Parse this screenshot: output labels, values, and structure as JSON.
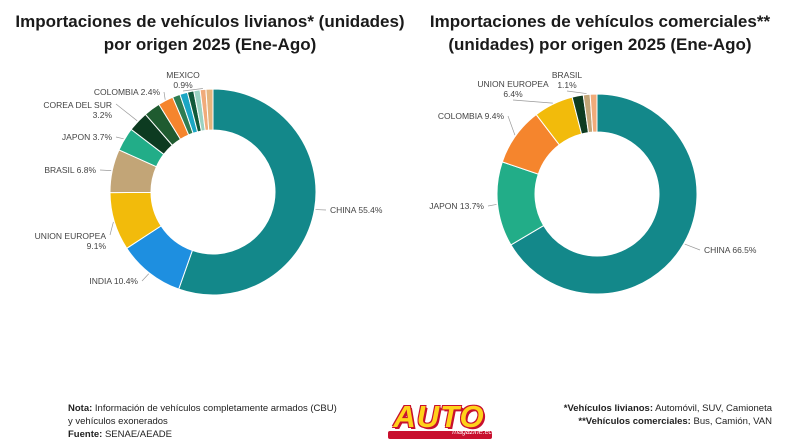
{
  "chart_data": [
    {
      "type": "pie",
      "title": "Importaciones de vehículos livianos* (unidades) por origen 2025 (Ene-Ago)",
      "title_lines": [
        "Importaciones de vehículos livianos* (unidades)",
        "por origen 2025 (Ene-Ago)"
      ],
      "slices": [
        {
          "label": "CHINA",
          "value": 55.4,
          "text": "CHINA 55.4%",
          "color": "#13888a"
        },
        {
          "label": "INDIA",
          "value": 10.4,
          "text": "INDIA 10.4%",
          "color": "#1e8fe0"
        },
        {
          "label": "UNION EUROPEA",
          "value": 9.1,
          "text": [
            "UNION EUROPEA",
            "9.1%"
          ],
          "color": "#f2bb0b"
        },
        {
          "label": "BRASIL",
          "value": 6.8,
          "text": "BRASIL 6.8%",
          "color": "#c2a577"
        },
        {
          "label": "JAPON",
          "value": 3.7,
          "text": "JAPON 3.7%",
          "color": "#22ad88"
        },
        {
          "label": "COREA DEL SUR",
          "value": 3.2,
          "text": [
            "COREA DEL SUR",
            "3.2%"
          ],
          "color": "#0d3b21"
        },
        {
          "label": "other-1",
          "value": 2.6,
          "color": "#1f5b30"
        },
        {
          "label": "COLOMBIA",
          "value": 2.4,
          "text": "COLOMBIA 2.4%",
          "color": "#f5852d"
        },
        {
          "label": "other-2",
          "value": 1.2,
          "color": "#2e7d52"
        },
        {
          "label": "other-3",
          "value": 1.2,
          "color": "#1ba6c4"
        },
        {
          "label": "other-4",
          "value": 1.0,
          "color": "#11593a"
        },
        {
          "label": "other-5",
          "value": 1.0,
          "color": "#9ad2c2"
        },
        {
          "label": "MEXICO",
          "value": 0.9,
          "text": [
            "MEXICO",
            "0.9%"
          ],
          "color": "#f0ab7a"
        },
        {
          "label": "other-6",
          "value": 1.1,
          "color": "#e5b57d"
        }
      ]
    },
    {
      "type": "pie",
      "title": "Importaciones de vehículos comerciales** (unidades) por origen 2025 (Ene-Ago)",
      "title_lines": [
        "Importaciones de vehículos comerciales**",
        "(unidades) por origen 2025 (Ene-Ago)"
      ],
      "slices": [
        {
          "label": "CHINA",
          "value": 66.5,
          "text": "CHINA 66.5%",
          "color": "#13888a"
        },
        {
          "label": "JAPON",
          "value": 13.7,
          "text": "JAPON 13.7%",
          "color": "#22ad88"
        },
        {
          "label": "COLOMBIA",
          "value": 9.4,
          "text": "COLOMBIA 9.4%",
          "color": "#f5852d"
        },
        {
          "label": "UNION EUROPEA",
          "value": 6.4,
          "text": [
            "UNION EUROPEA",
            "6.4%"
          ],
          "color": "#f2bb0b"
        },
        {
          "label": "other-1",
          "value": 1.8,
          "color": "#0d3b21"
        },
        {
          "label": "BRASIL",
          "value": 1.1,
          "text": [
            "BRASIL",
            "1.1%"
          ],
          "color": "#c2a577"
        },
        {
          "label": "other-2",
          "value": 1.1,
          "color": "#f0ab7a"
        }
      ]
    }
  ],
  "footer": {
    "note_label": "Nota:",
    "note_text": "Información de vehículos completamente armados (CBU)",
    "note_text2": "y vehículos exonerados",
    "source_label": "Fuente:",
    "source_text": "SENAE/AEADE",
    "light_label": "*Vehículos livianos:",
    "light_text": "Automóvil, SUV, Camioneta",
    "commercial_label": "**Vehículos comerciales:",
    "commercial_text": "Bus, Camión, VAN"
  },
  "logo": {
    "text": "AUTO",
    "subtext": "magazine.ec"
  }
}
